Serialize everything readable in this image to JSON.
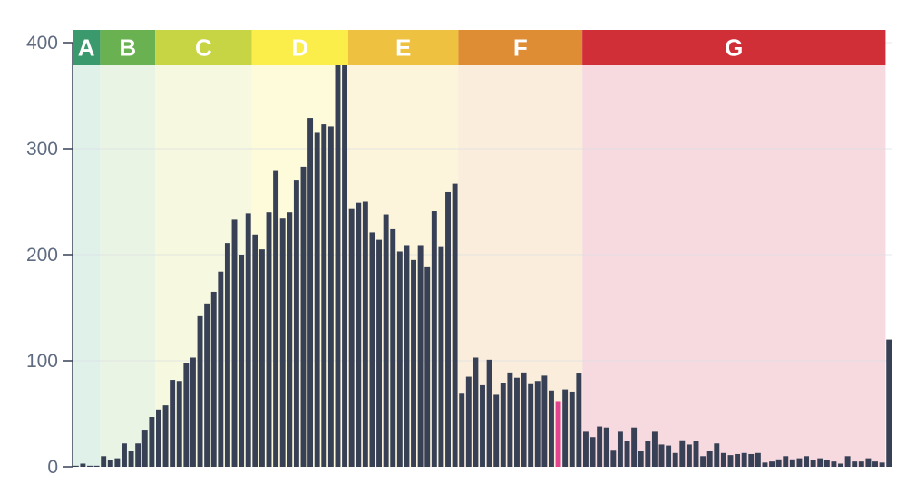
{
  "chart_data": {
    "type": "bar",
    "title": "",
    "xlabel": "",
    "ylabel": "",
    "ylim": [
      0,
      400
    ],
    "yticks": [
      0,
      100,
      200,
      300,
      400
    ],
    "grid": true,
    "bar_color": "#374054",
    "highlight_color": "#e2448f",
    "highlight_index": 70,
    "bands": [
      {
        "label": "A",
        "start": 0,
        "end": 4,
        "color": "#3a9a6e",
        "bg": "#e0f1ea"
      },
      {
        "label": "B",
        "start": 4,
        "end": 12,
        "color": "#6ab251",
        "bg": "#e9f4e5"
      },
      {
        "label": "C",
        "start": 12,
        "end": 26,
        "color": "#c7d544",
        "bg": "#f6f8df"
      },
      {
        "label": "D",
        "start": 26,
        "end": 40,
        "color": "#fbee4a",
        "bg": "#fefbdb"
      },
      {
        "label": "E",
        "start": 40,
        "end": 56,
        "color": "#eec140",
        "bg": "#fdf4dc"
      },
      {
        "label": "F",
        "start": 56,
        "end": 74,
        "color": "#df8d35",
        "bg": "#faeddc"
      },
      {
        "label": "G",
        "start": 74,
        "end": 118,
        "color": "#d12f38",
        "bg": "#f7dadf"
      }
    ],
    "values": [
      1,
      3,
      1,
      1,
      10,
      6,
      8,
      22,
      15,
      22,
      35,
      47,
      54,
      58,
      82,
      81,
      98,
      103,
      142,
      154,
      165,
      184,
      211,
      233,
      200,
      239,
      219,
      205,
      240,
      279,
      234,
      240,
      270,
      283,
      329,
      315,
      323,
      321,
      382,
      396,
      243,
      249,
      250,
      221,
      214,
      238,
      224,
      203,
      209,
      195,
      209,
      189,
      241,
      208,
      259,
      267,
      69,
      85,
      103,
      77,
      101,
      68,
      79,
      89,
      84,
      89,
      78,
      81,
      86,
      72,
      62,
      73,
      71,
      88,
      33,
      28,
      38,
      37,
      16,
      33,
      24,
      37,
      15,
      24,
      33,
      21,
      20,
      13,
      25,
      21,
      24,
      10,
      15,
      22,
      13,
      11,
      12,
      13,
      12,
      13,
      4,
      5,
      7,
      10,
      7,
      8,
      10,
      6,
      8,
      6,
      5,
      3,
      10,
      5,
      5,
      8,
      5,
      4,
      120
    ]
  }
}
